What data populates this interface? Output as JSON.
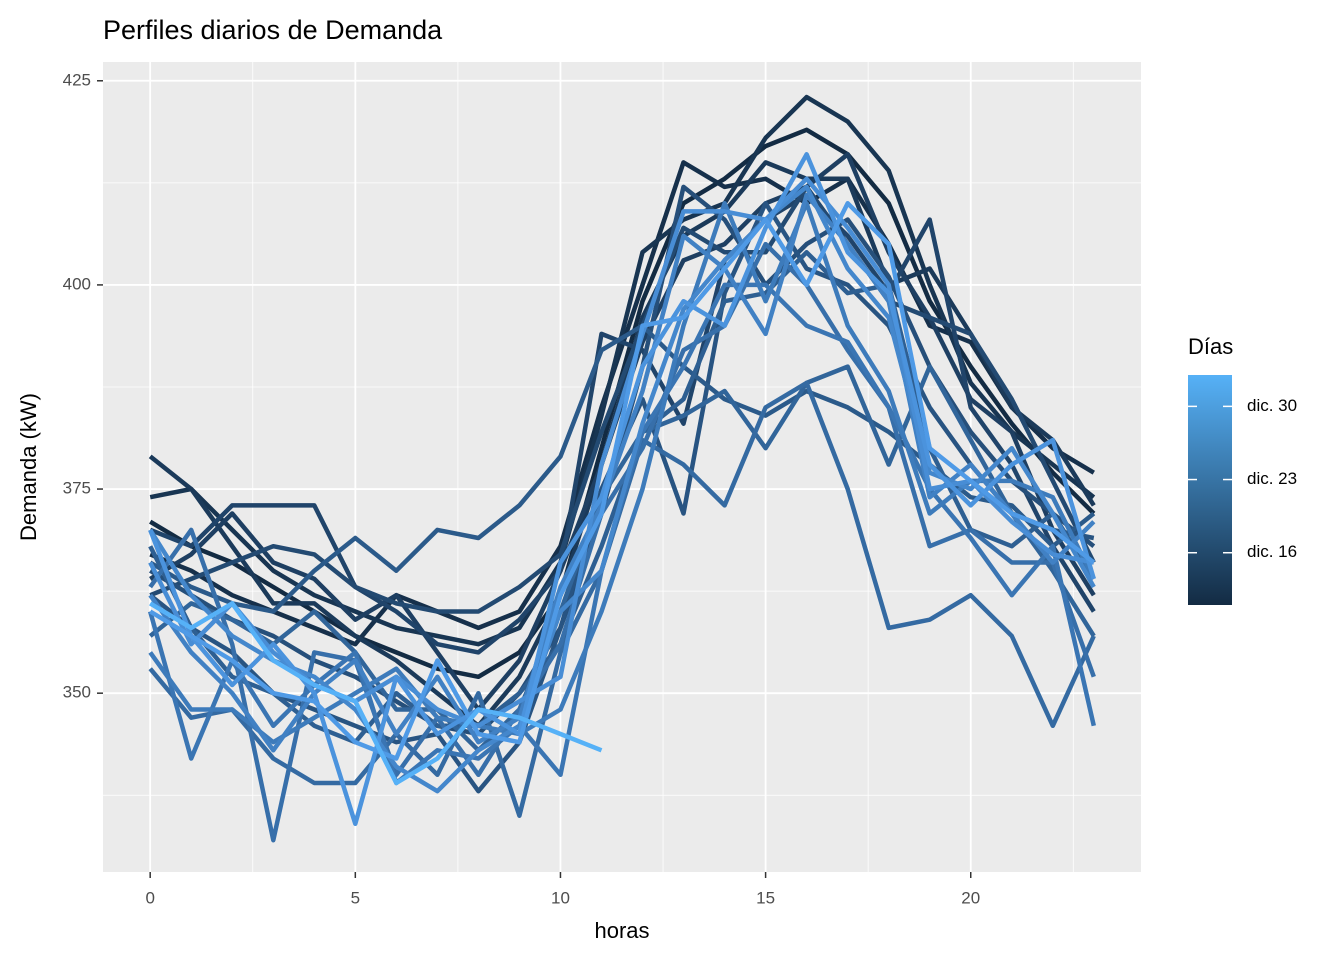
{
  "chart_data": {
    "type": "line",
    "title": "Perfiles diarios de Demanda",
    "xlabel": "horas",
    "ylabel": "Demanda (kW)",
    "x": [
      0,
      1,
      2,
      3,
      4,
      5,
      6,
      7,
      8,
      9,
      10,
      11,
      12,
      13,
      14,
      15,
      16,
      17,
      18,
      19,
      20,
      21,
      22,
      23
    ],
    "xlim": [
      -1.15,
      24.15
    ],
    "ylim": [
      328.1,
      427.3
    ],
    "xticks": [
      0,
      5,
      10,
      15,
      20
    ],
    "yticks": [
      350,
      375,
      400,
      425
    ],
    "xminor": [
      2.5,
      7.5,
      12.5,
      17.5,
      22.5
    ],
    "yminor": [
      337.5,
      362.5,
      387.5,
      412.5
    ],
    "grid": true,
    "legend": {
      "title": "Días",
      "lim": [
        11,
        33
      ],
      "colors": [
        "#132B43",
        "#56B1F7"
      ],
      "ticks": [
        {
          "value": 16,
          "label": "dic. 16"
        },
        {
          "value": 23,
          "label": "dic. 23"
        },
        {
          "value": 30,
          "label": "dic. 30"
        }
      ]
    },
    "series": [
      {
        "color": "#132B43",
        "values": [
          371,
          368,
          366,
          363,
          360,
          357,
          355,
          353,
          352,
          355,
          362,
          380,
          398,
          410,
          413,
          417,
          419,
          416,
          410,
          398,
          390,
          383,
          377,
          372
        ]
      },
      {
        "color": "#16304B",
        "values": [
          367,
          365,
          362,
          360,
          358,
          356,
          362,
          360,
          358,
          360,
          368,
          385,
          400,
          415,
          412,
          413,
          410,
          413,
          405,
          395,
          393,
          385,
          380,
          377
        ]
      },
      {
        "color": "#183552",
        "values": [
          374,
          375,
          370,
          365,
          362,
          360,
          358,
          357,
          356,
          358,
          366,
          384,
          404,
          408,
          410,
          418,
          423,
          420,
          414,
          400,
          388,
          382,
          378,
          374
        ]
      },
      {
        "color": "#1B3A5A",
        "values": [
          379,
          375,
          368,
          361,
          361,
          357,
          354,
          350,
          346,
          352,
          362,
          378,
          396,
          406,
          409,
          415,
          413,
          413,
          400,
          402,
          394,
          385,
          381,
          373
        ]
      },
      {
        "color": "#1E3F62",
        "values": [
          364,
          367,
          372,
          366,
          364,
          359,
          362,
          355,
          348,
          354,
          365,
          378,
          393,
          403,
          405,
          410,
          412,
          416,
          404,
          396,
          386,
          382,
          370,
          362
        ]
      },
      {
        "color": "#20446A",
        "values": [
          370,
          368,
          373,
          373,
          373,
          363,
          360,
          356,
          355,
          359,
          365,
          394,
          392,
          383,
          403,
          408,
          411,
          406,
          399,
          408,
          385,
          378,
          368,
          360
        ]
      },
      {
        "color": "#234A72",
        "values": [
          362,
          364,
          366,
          368,
          367,
          363,
          361,
          360,
          360,
          363,
          367,
          382,
          395,
          407,
          404,
          404,
          412,
          405,
          398,
          396,
          394,
          386,
          376,
          366
        ]
      },
      {
        "color": "#264F7A",
        "values": [
          365,
          362,
          359,
          357,
          354,
          352,
          349,
          346,
          345,
          350,
          358,
          372,
          390,
          412,
          408,
          400,
          405,
          408,
          401,
          390,
          382,
          376,
          372,
          368
        ]
      },
      {
        "color": "#285482",
        "values": [
          362,
          358,
          355,
          350,
          348,
          346,
          344,
          345,
          338,
          344,
          358,
          375,
          386,
          372,
          399,
          410,
          402,
          400,
          395,
          385,
          378,
          372,
          370,
          369
        ]
      },
      {
        "color": "#2B5A8A",
        "values": [
          366,
          363,
          361,
          360,
          365,
          369,
          365,
          370,
          369,
          373,
          379,
          392,
          395,
          390,
          386,
          384,
          387,
          385,
          382,
          378,
          374,
          373,
          368,
          372
        ]
      },
      {
        "color": "#2E5F92",
        "values": [
          368,
          358,
          352,
          350,
          346,
          344,
          350,
          346,
          346,
          350,
          356,
          368,
          382,
          386,
          398,
          399,
          404,
          399,
          400,
          380,
          370,
          368,
          372,
          364
        ]
      },
      {
        "color": "#31659A",
        "values": [
          357,
          361,
          359,
          356,
          360,
          355,
          348,
          348,
          343,
          348,
          360,
          374,
          382,
          384,
          387,
          380,
          388,
          390,
          378,
          390,
          381,
          372,
          365,
          357
        ]
      },
      {
        "color": "#346AA2",
        "values": [
          353,
          347,
          348,
          342,
          339,
          339,
          345,
          340,
          350,
          335,
          355,
          365,
          381,
          378,
          373,
          385,
          388,
          375,
          358,
          359,
          362,
          357,
          346,
          357
        ]
      },
      {
        "color": "#376FAA",
        "values": [
          363,
          370,
          356,
          332,
          355,
          354,
          340,
          347,
          340,
          348,
          356,
          372,
          380,
          392,
          395,
          405,
          400,
          392,
          385,
          368,
          370,
          366,
          366,
          352
        ]
      },
      {
        "color": "#3A75B3",
        "values": [
          360,
          342,
          354,
          346,
          351,
          355,
          339,
          343,
          342,
          346,
          340,
          365,
          382,
          390,
          400,
          400,
          395,
          393,
          385,
          375,
          369,
          362,
          368,
          346
        ]
      },
      {
        "color": "#3D7BBB",
        "values": [
          355,
          348,
          348,
          344,
          347,
          350,
          353,
          347,
          346,
          345,
          348,
          360,
          375,
          395,
          410,
          398,
          410,
          395,
          387,
          372,
          376,
          376,
          374,
          364
        ]
      },
      {
        "color": "#4181C4",
        "values": [
          362,
          355,
          350,
          343,
          350,
          354,
          345,
          352,
          344,
          347,
          363,
          373,
          387,
          406,
          402,
          394,
          411,
          405,
          398,
          374,
          378,
          372,
          366,
          371
        ]
      },
      {
        "color": "#4487CC",
        "values": [
          370,
          362,
          357,
          354,
          352,
          348,
          341,
          338,
          343,
          346,
          360,
          365,
          383,
          397,
          403,
          408,
          412,
          402,
          396,
          377,
          375,
          380,
          372,
          363
        ]
      },
      {
        "color": "#488DD5",
        "values": [
          366,
          356,
          361,
          355,
          351,
          349,
          352,
          348,
          346,
          349,
          352,
          378,
          394,
          409,
          409,
          408,
          413,
          407,
          400,
          375,
          376,
          371,
          367,
          366
        ]
      },
      {
        "color": "#4B93DD",
        "values": [
          370,
          357,
          351,
          356,
          350,
          334,
          352,
          345,
          348,
          345,
          366,
          374,
          390,
          398,
          395,
          407,
          416,
          404,
          399,
          378,
          373,
          378,
          381,
          364
        ]
      },
      {
        "color": "#4F9AE6",
        "values": [
          360,
          357,
          354,
          350,
          349,
          344,
          342,
          354,
          345,
          344,
          362,
          372,
          395,
          396,
          402,
          408,
          400,
          410,
          405,
          380,
          376,
          372,
          370,
          366
        ]
      },
      {
        "color": "#56B1F7",
        "values": [
          361,
          358,
          361,
          354,
          351,
          349,
          339,
          342,
          348,
          347,
          345,
          343,
          null,
          null,
          null,
          null,
          null,
          null,
          null,
          null,
          null,
          null,
          null,
          null
        ]
      }
    ]
  }
}
